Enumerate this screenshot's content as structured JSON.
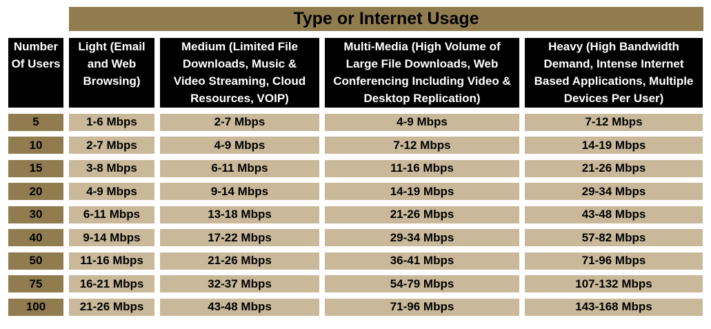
{
  "title": "Type or Internet Usage",
  "colors": {
    "gold": "#917c50",
    "tan": "#c9b99a",
    "header": "#000000"
  },
  "headers": [
    "Number Of Users",
    "Light (Email and  Web Browsing)",
    "Medium (Limited File Downloads, Music & Video Streaming, Cloud Resources, VOIP)",
    "Multi-Media (High Volume of Large File Downloads, Web Conferencing Including Video & Desktop Replication)",
    "Heavy (High Bandwidth Demand, Intense Internet Based Applications, Multiple Devices Per User)"
  ],
  "rows": [
    [
      "5",
      "1-6 Mbps",
      "2-7 Mbps",
      "4-9 Mbps",
      "7-12 Mbps"
    ],
    [
      "10",
      "2-7 Mbps",
      "4-9 Mbps",
      "7-12 Mbps",
      "14-19 Mbps"
    ],
    [
      "15",
      "3-8 Mbps",
      "6-11 Mbps",
      "11-16 Mbps",
      "21-26 Mbps"
    ],
    [
      "20",
      "4-9 Mbps",
      "9-14 Mbps",
      "14-19 Mbps",
      "29-34 Mbps"
    ],
    [
      "30",
      "6-11 Mbps",
      "13-18 Mbps",
      "21-26 Mbps",
      "43-48 Mbps"
    ],
    [
      "40",
      "9-14 Mbps",
      "17-22 Mbps",
      "29-34 Mbps",
      "57-82 Mbps"
    ],
    [
      "50",
      "11-16 Mbps",
      "21-26 Mbps",
      "36-41 Mbps",
      "71-96 Mbps"
    ],
    [
      "75",
      "16-21 Mbps",
      "32-37 Mbps",
      "54-79 Mbps",
      "107-132 Mbps"
    ],
    [
      "100",
      "21-26 Mbps",
      "43-48 Mbps",
      "71-96 Mbps",
      "143-168 Mbps"
    ]
  ]
}
